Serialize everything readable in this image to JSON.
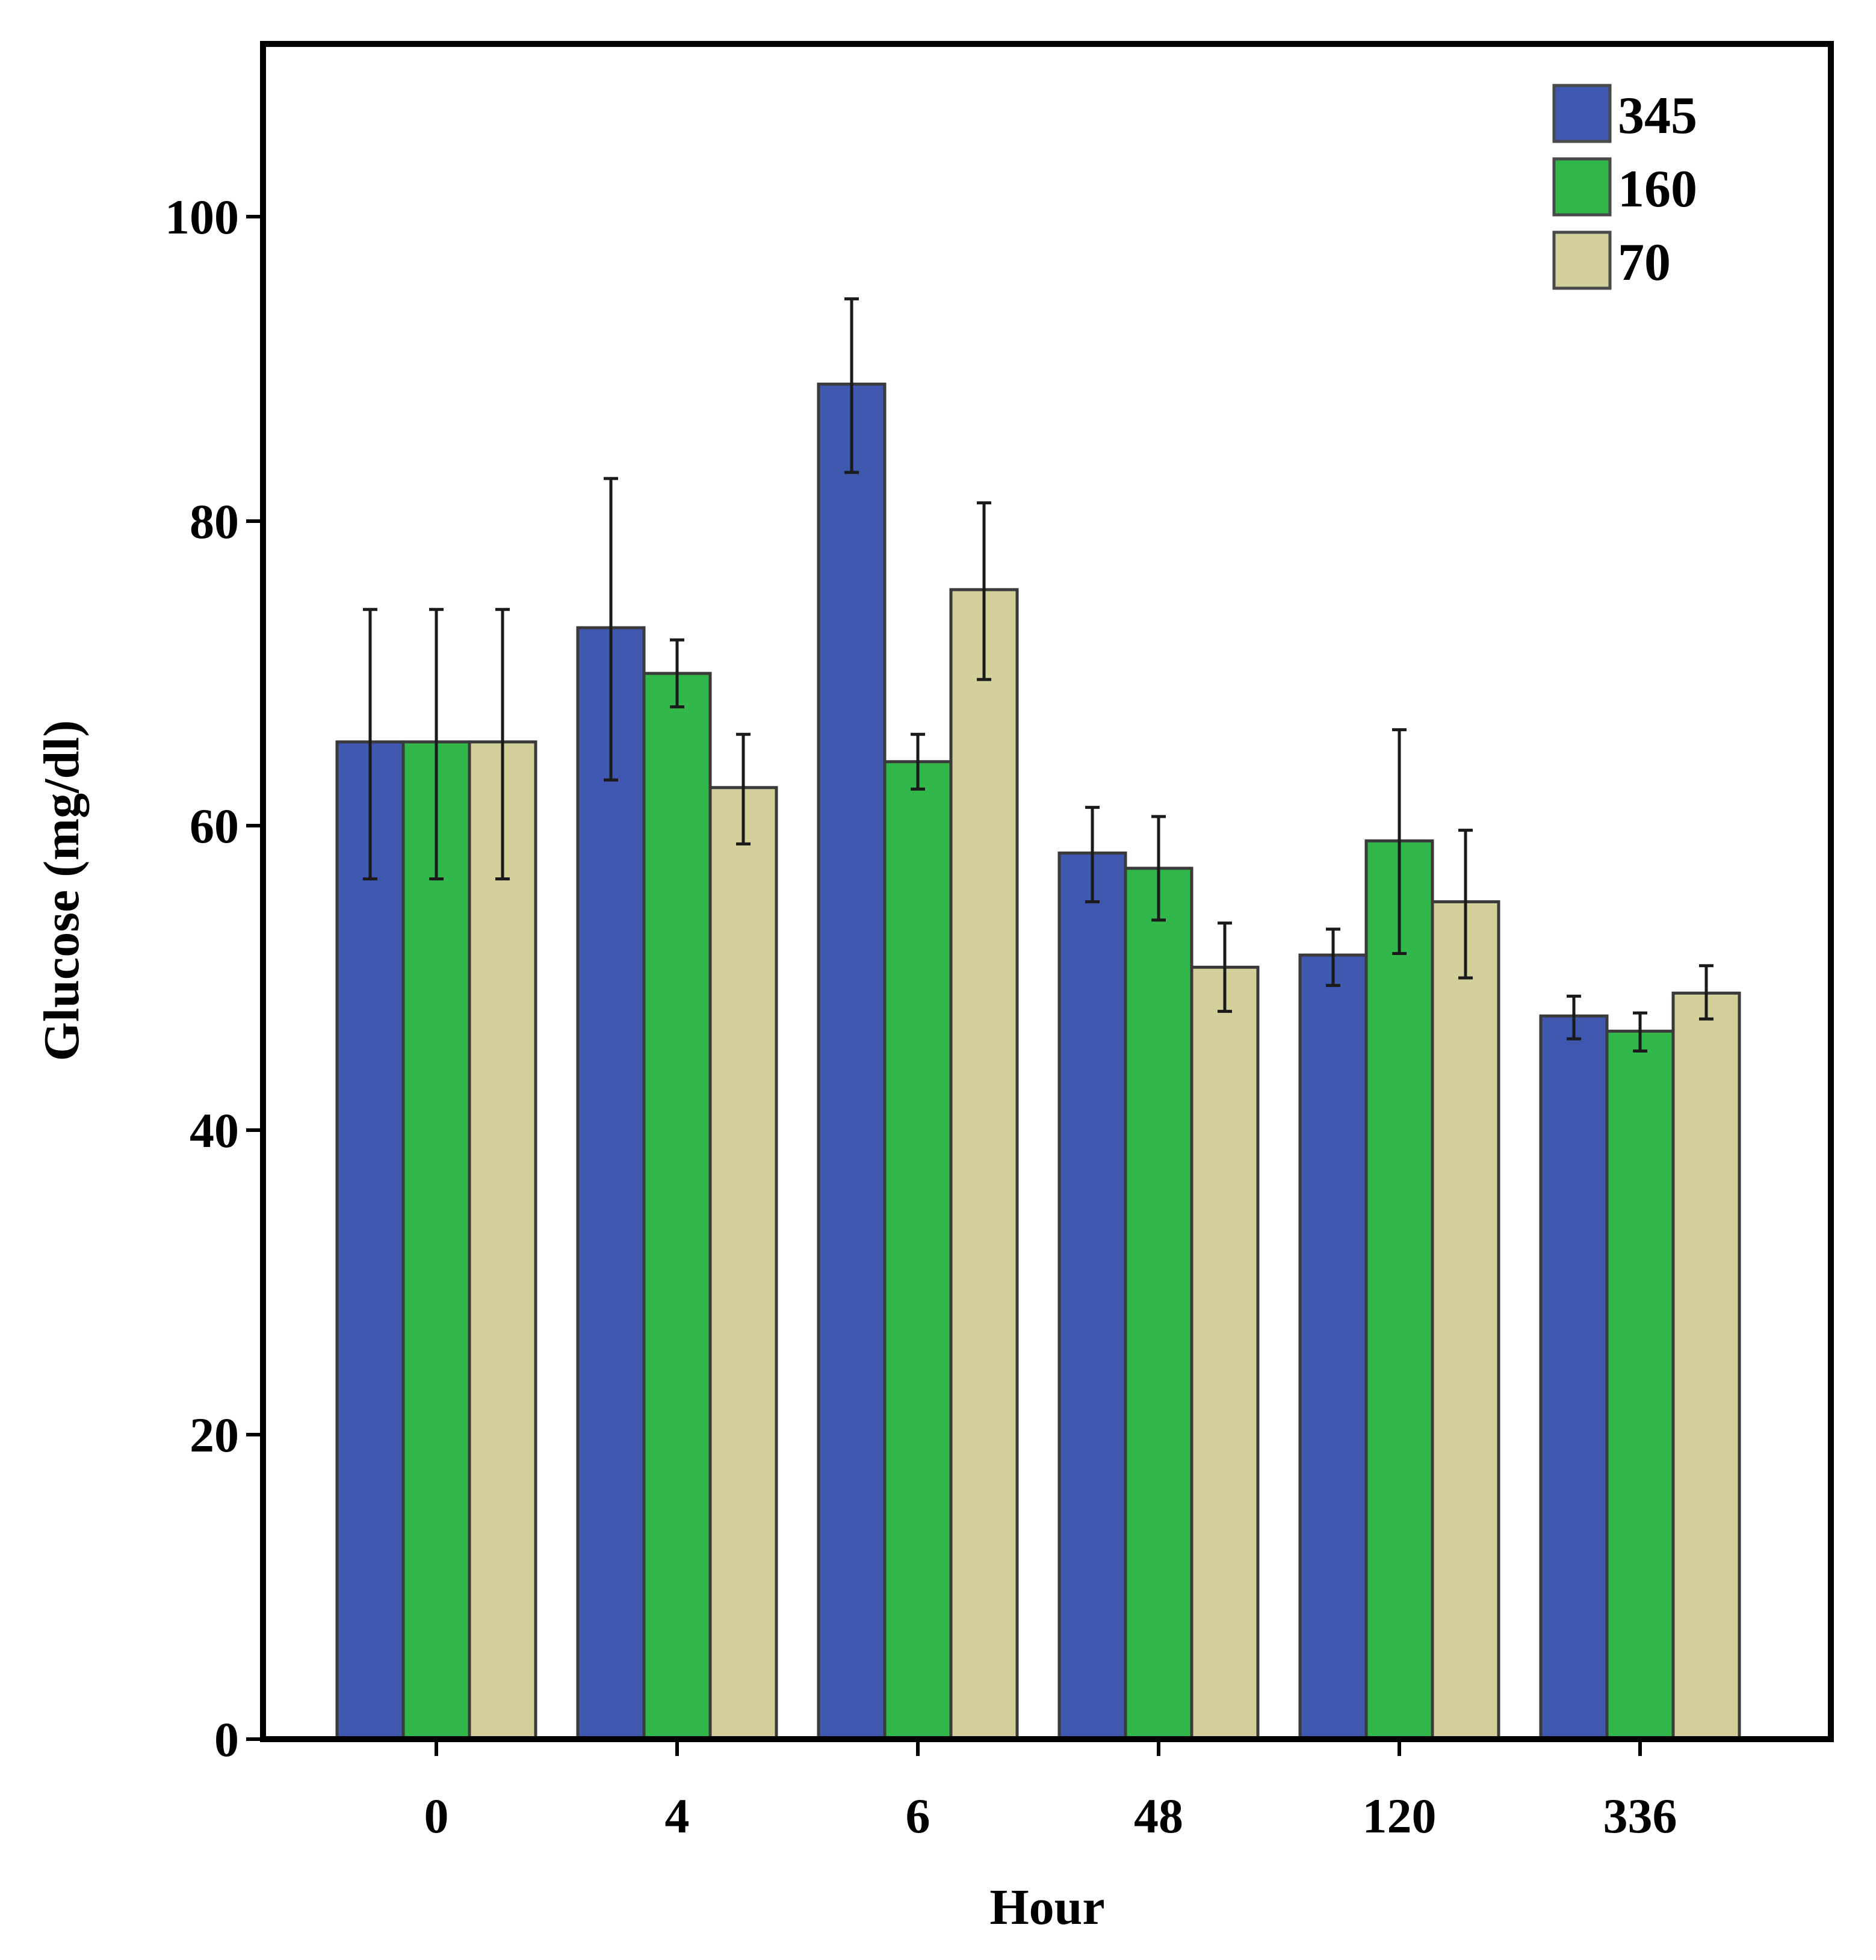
{
  "chart_data": {
    "type": "bar",
    "title": "",
    "xlabel": "Hour",
    "ylabel": "Glucose (mg/dl)",
    "categories": [
      "0",
      "4",
      "6",
      "48",
      "120",
      "336"
    ],
    "yticks": [
      "0",
      "20",
      "40",
      "60",
      "80",
      "100"
    ],
    "ylim": [
      0,
      111
    ],
    "grid": false,
    "legend_position": "top-right",
    "series": [
      {
        "name": "345",
        "color": "#3f57ae",
        "values": [
          65.5,
          73.0,
          89.0,
          58.2,
          51.5,
          47.5
        ],
        "error_low": [
          56.5,
          63.0,
          83.2,
          55.0,
          49.5,
          46.0
        ],
        "error_high": [
          74.2,
          82.8,
          94.6,
          61.2,
          53.2,
          48.8
        ]
      },
      {
        "name": "160",
        "color": "#32b84a",
        "values": [
          65.5,
          70.0,
          64.2,
          57.2,
          59.0,
          46.5
        ],
        "error_low": [
          56.5,
          67.8,
          62.4,
          53.8,
          51.6,
          45.2
        ],
        "error_high": [
          74.2,
          72.2,
          66.0,
          60.6,
          66.3,
          47.7
        ]
      },
      {
        "name": "70",
        "color": "#d4d09b",
        "values": [
          65.5,
          62.5,
          75.5,
          50.7,
          55.0,
          49.0
        ],
        "error_low": [
          56.5,
          58.8,
          69.6,
          47.8,
          50.0,
          47.3
        ],
        "error_high": [
          74.2,
          66.0,
          81.2,
          53.6,
          59.7,
          50.8
        ]
      }
    ]
  }
}
